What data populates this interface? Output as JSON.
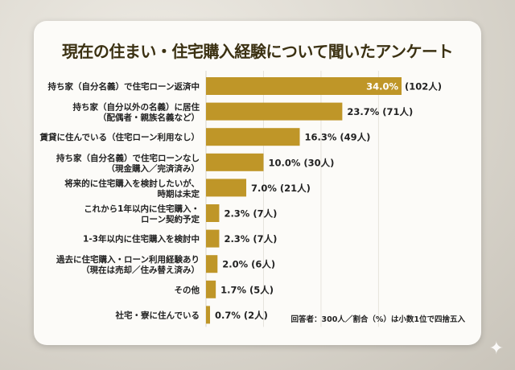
{
  "chart_data": {
    "type": "bar",
    "orientation": "horizontal",
    "title": "現在の住まい・住宅購入経験について聞いたアンケート",
    "categories": [
      [
        "持ち家（自分名義）で住宅ローン返済中"
      ],
      [
        "持ち家（自分以外の名義）に居住",
        "（配偶者・親族名義など）"
      ],
      [
        "賃貸に住んでいる（住宅ローン利用なし）"
      ],
      [
        "持ち家（自分名義）で住宅ローンなし",
        "（現金購入／完済済み）"
      ],
      [
        "将来的に住宅購入を検討したいが、",
        "時期は未定"
      ],
      [
        "これから1年以内に住宅購入・",
        "ローン契約予定"
      ],
      [
        "1-3年以内に住宅購入を検討中"
      ],
      [
        "過去に住宅購入・ローン利用経験あり",
        "（現在は売却／住み替え済み）"
      ],
      [
        "その他"
      ],
      [
        "社宅・寮に住んでいる"
      ]
    ],
    "values": [
      34.0,
      23.7,
      16.3,
      10.0,
      7.0,
      2.3,
      2.3,
      2.0,
      1.7,
      0.7
    ],
    "value_labels": [
      "34.0%",
      "23.7%",
      "16.3%",
      "10.0%",
      "7.0%",
      "2.3%",
      "2.3%",
      "2.0%",
      "1.7%",
      "0.7%"
    ],
    "count_labels": [
      "(102人)",
      "(71人)",
      "(49人)",
      "(30人)",
      "(21人)",
      "(7人)",
      "(7人)",
      "(6人)",
      "(5人)",
      "(2人)"
    ],
    "xlim": [
      0,
      34
    ],
    "grid": true,
    "note": "回答者：300人／割合（%）は小数1位で四捨五入",
    "colors": {
      "bar": "#bf9628",
      "title": "#3b3112",
      "inside_label": "#ffffff"
    }
  }
}
